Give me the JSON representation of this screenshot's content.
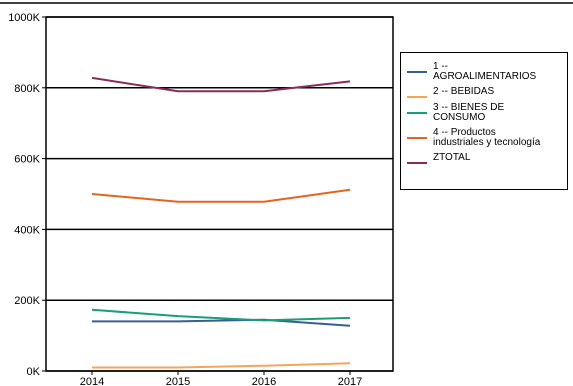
{
  "chart_data": {
    "type": "line",
    "categories": [
      "2014",
      "2015",
      "2016",
      "2017"
    ],
    "ylim": [
      0,
      1000000
    ],
    "yticks": [
      0,
      200000,
      400000,
      600000,
      800000,
      1000000
    ],
    "ytick_labels": [
      "0K",
      "200K",
      "400K",
      "600K",
      "800K",
      "1000K"
    ],
    "grid": true,
    "legend_position": "right",
    "series": [
      {
        "name": "1 --\nAGROALIMENTARIOS",
        "color": "#3b5d96",
        "values": [
          140000,
          140000,
          145000,
          128000
        ]
      },
      {
        "name": "2 -- BEBIDAS",
        "color": "#f5a55a",
        "values": [
          10000,
          10000,
          15000,
          22000
        ]
      },
      {
        "name": "3 -- BIENES DE\nCONSUMO",
        "color": "#189e78",
        "values": [
          173000,
          155000,
          143000,
          150000
        ]
      },
      {
        "name": "4 -- Productos\nindustriales y tecnología",
        "color": "#e2661f",
        "values": [
          500000,
          478000,
          478000,
          512000
        ]
      },
      {
        "name": "ZTOTAL",
        "color": "#8a2a5d",
        "values": [
          828000,
          790000,
          790000,
          818000
        ]
      }
    ]
  }
}
